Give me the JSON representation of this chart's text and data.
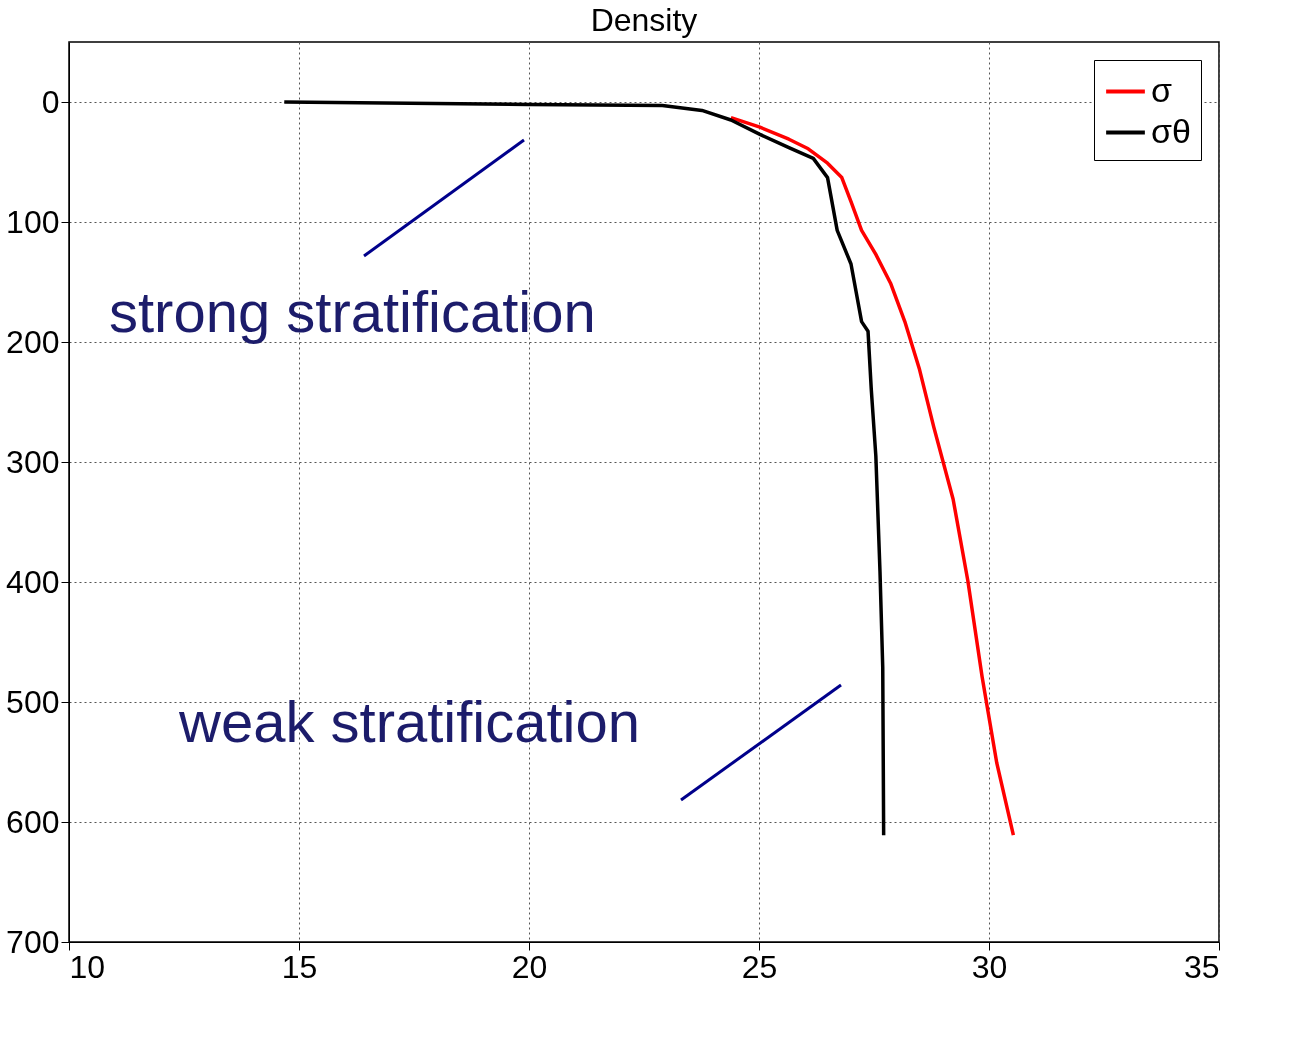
{
  "chart_data": {
    "type": "line",
    "title": "Density",
    "xlim": [
      10,
      35
    ],
    "xticks": [
      10,
      15,
      20,
      25,
      30,
      35
    ],
    "ylim": [
      700,
      -50
    ],
    "yticks": [
      0,
      100,
      200,
      300,
      400,
      500,
      600,
      700
    ],
    "grid": true,
    "legend": "top right",
    "line_style": "solid",
    "marker": "none",
    "series": [
      {
        "name": "σ",
        "color": "#ff0000",
        "x": [
          24.39,
          25.02,
          25.65,
          26.07,
          26.49,
          26.8,
          27.0,
          27.23,
          27.54,
          27.86,
          28.17,
          28.49,
          28.8,
          29.22,
          29.54,
          29.85,
          30.17,
          30.53
        ],
        "values": [
          13,
          21,
          31,
          39,
          51,
          63,
          83,
          107,
          127,
          151,
          183,
          223,
          271,
          331,
          399,
          479,
          551,
          611
        ]
      },
      {
        "name": "σθ",
        "color": "#000000",
        "x": [
          14.68,
          19.98,
          22.9,
          23.76,
          24.39,
          25.02,
          25.65,
          26.18,
          26.49,
          26.7,
          27.0,
          27.23,
          27.37,
          27.44,
          27.54,
          27.63,
          27.69,
          27.71
        ],
        "values": [
          0,
          2,
          3,
          7,
          15,
          27,
          38,
          47,
          63,
          107,
          135,
          183,
          191,
          239,
          295,
          391,
          471,
          611
        ]
      }
    ],
    "annotations": [
      "strong stratification",
      "weak stratification"
    ]
  }
}
